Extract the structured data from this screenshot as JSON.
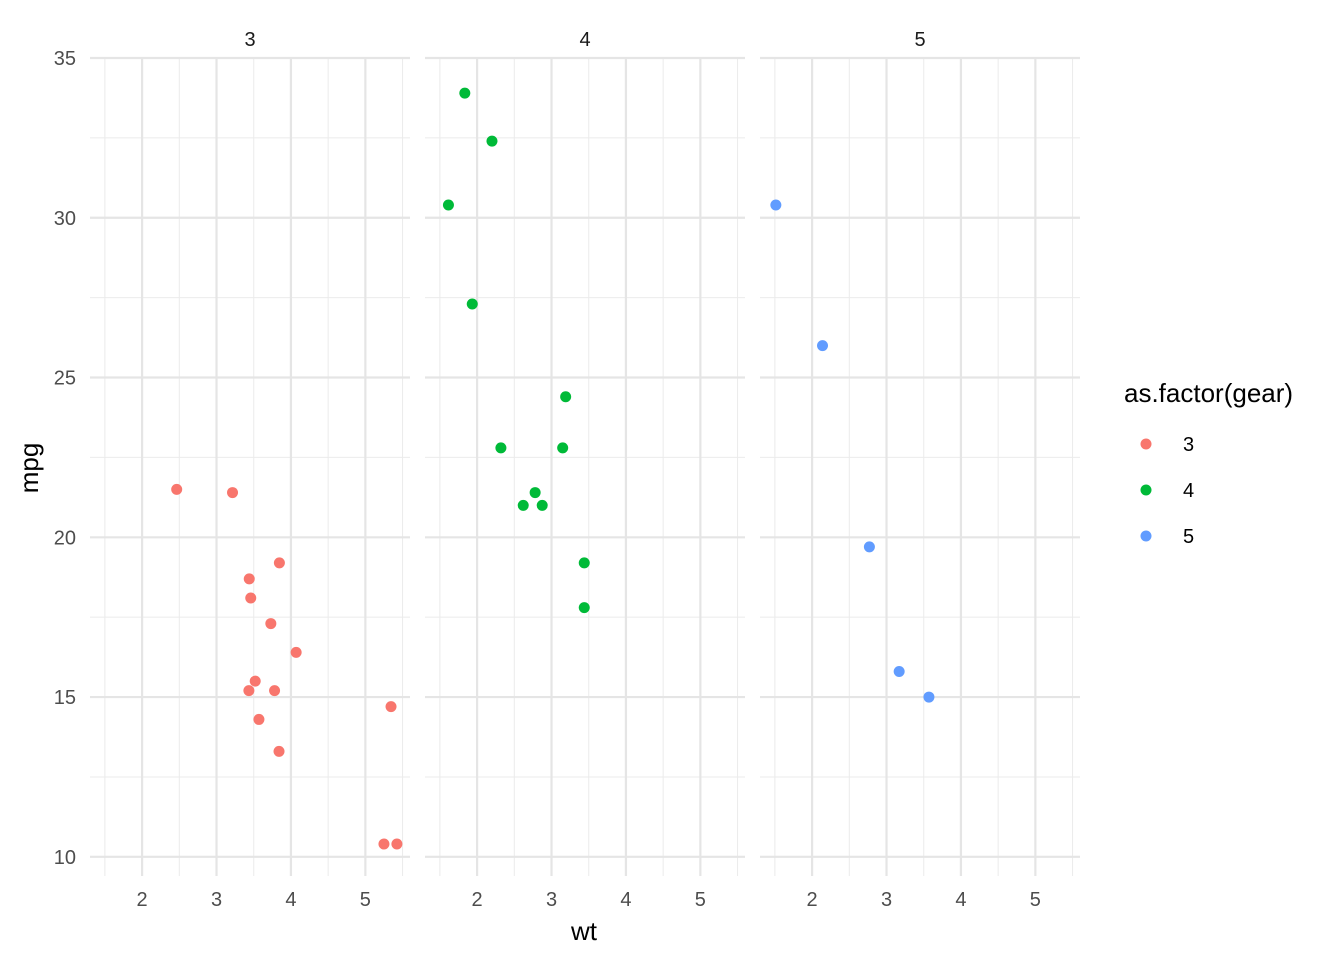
{
  "chart_data": {
    "type": "scatter",
    "facet_by": "gear",
    "xlabel": "wt",
    "ylabel": "mpg",
    "xlim": [
      1.3,
      5.6
    ],
    "ylim": [
      9.4,
      35.0
    ],
    "x_ticks": [
      2,
      3,
      4,
      5
    ],
    "y_ticks": [
      10,
      15,
      20,
      25,
      30,
      35
    ],
    "grid": true,
    "legend": {
      "title": "as.factor(gear)",
      "placement": "right",
      "entries": [
        {
          "label": "3",
          "color": "#F8766D"
        },
        {
          "label": "4",
          "color": "#00BA38"
        },
        {
          "label": "5",
          "color": "#619CFF"
        }
      ]
    },
    "panels": [
      {
        "strip": "3",
        "color": "#F8766D",
        "points": [
          {
            "x": 2.465,
            "y": 21.5
          },
          {
            "x": 3.215,
            "y": 21.4
          },
          {
            "x": 3.44,
            "y": 18.7
          },
          {
            "x": 3.46,
            "y": 18.1
          },
          {
            "x": 3.57,
            "y": 14.3
          },
          {
            "x": 4.07,
            "y": 16.4
          },
          {
            "x": 3.73,
            "y": 17.3
          },
          {
            "x": 3.78,
            "y": 15.2
          },
          {
            "x": 5.25,
            "y": 10.4
          },
          {
            "x": 5.424,
            "y": 10.4
          },
          {
            "x": 5.345,
            "y": 14.7
          },
          {
            "x": 3.52,
            "y": 15.5
          },
          {
            "x": 3.435,
            "y": 15.2
          },
          {
            "x": 3.84,
            "y": 13.3
          },
          {
            "x": 3.845,
            "y": 19.2
          }
        ]
      },
      {
        "strip": "4",
        "color": "#00BA38",
        "points": [
          {
            "x": 2.62,
            "y": 21.0
          },
          {
            "x": 2.875,
            "y": 21.0
          },
          {
            "x": 2.32,
            "y": 22.8
          },
          {
            "x": 3.19,
            "y": 24.4
          },
          {
            "x": 3.15,
            "y": 22.8
          },
          {
            "x": 3.44,
            "y": 19.2
          },
          {
            "x": 3.44,
            "y": 17.8
          },
          {
            "x": 2.2,
            "y": 32.4
          },
          {
            "x": 1.615,
            "y": 30.4
          },
          {
            "x": 1.835,
            "y": 33.9
          },
          {
            "x": 1.935,
            "y": 27.3
          },
          {
            "x": 2.78,
            "y": 21.4
          }
        ]
      },
      {
        "strip": "5",
        "color": "#619CFF",
        "points": [
          {
            "x": 2.14,
            "y": 26.0
          },
          {
            "x": 1.513,
            "y": 30.4
          },
          {
            "x": 3.17,
            "y": 15.8
          },
          {
            "x": 2.77,
            "y": 19.7
          },
          {
            "x": 3.57,
            "y": 15.0
          }
        ]
      }
    ]
  }
}
